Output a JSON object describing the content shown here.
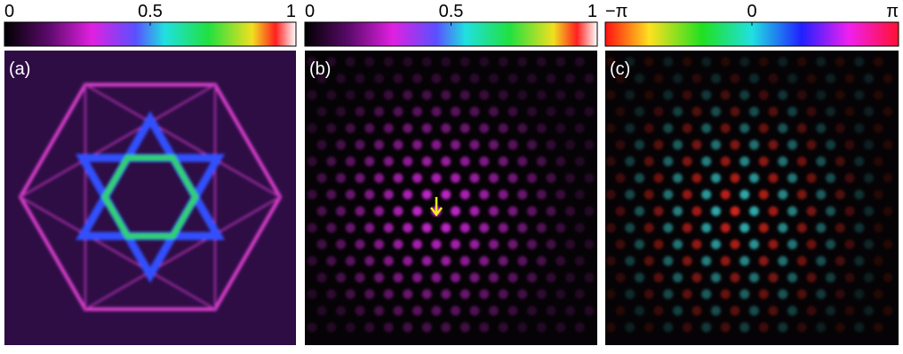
{
  "panels": [
    {
      "label": "(a)",
      "colorbar": {
        "kind": "intensity",
        "clim": [
          0,
          1
        ],
        "ticks": [
          0,
          0.5,
          1
        ]
      }
    },
    {
      "label": "(b)",
      "colorbar": {
        "kind": "intensity",
        "clim": [
          0,
          1
        ],
        "ticks": [
          0,
          0.5,
          1
        ]
      }
    },
    {
      "label": "(c)",
      "colorbar": {
        "kind": "phase",
        "clim": [
          -3.14159,
          3.14159
        ],
        "ticks": [
          {
            "value": -3.14159,
            "label": "−π"
          },
          0,
          {
            "value": 3.14159,
            "label": "π"
          }
        ]
      }
    }
  ]
}
